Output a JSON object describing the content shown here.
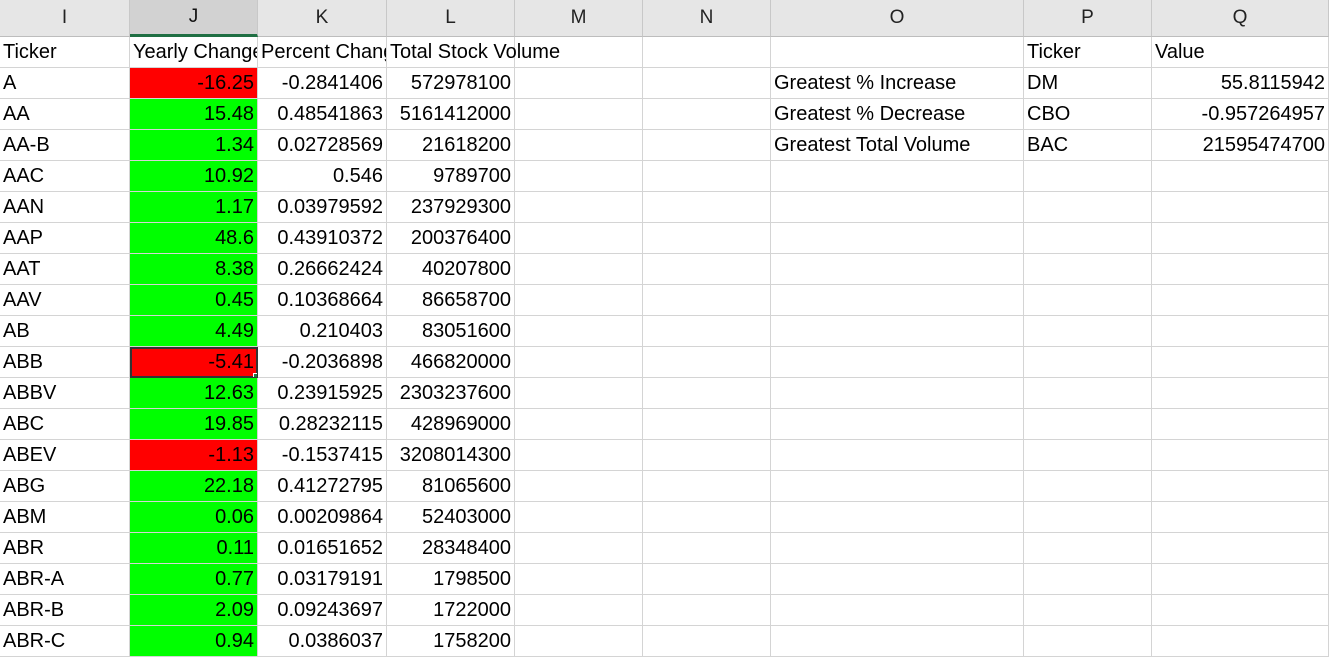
{
  "columns": [
    "I",
    "J",
    "K",
    "L",
    "M",
    "N",
    "O",
    "P",
    "Q"
  ],
  "headers": {
    "ticker": "Ticker",
    "yearly_change": "Yearly Change",
    "percent_change": "Percent Change",
    "total_volume": "Total Stock Volume",
    "summary_ticker": "Ticker",
    "summary_value": "Value"
  },
  "rows": [
    {
      "ticker": "A",
      "change": "-16.25",
      "pct": "-0.2841406",
      "vol": "572978100"
    },
    {
      "ticker": "AA",
      "change": "15.48",
      "pct": "0.48541863",
      "vol": "5161412000"
    },
    {
      "ticker": "AA-B",
      "change": "1.34",
      "pct": "0.02728569",
      "vol": "21618200"
    },
    {
      "ticker": "AAC",
      "change": "10.92",
      "pct": "0.546",
      "vol": "9789700"
    },
    {
      "ticker": "AAN",
      "change": "1.17",
      "pct": "0.03979592",
      "vol": "237929300"
    },
    {
      "ticker": "AAP",
      "change": "48.6",
      "pct": "0.43910372",
      "vol": "200376400"
    },
    {
      "ticker": "AAT",
      "change": "8.38",
      "pct": "0.26662424",
      "vol": "40207800"
    },
    {
      "ticker": "AAV",
      "change": "0.45",
      "pct": "0.10368664",
      "vol": "86658700"
    },
    {
      "ticker": "AB",
      "change": "4.49",
      "pct": "0.210403",
      "vol": "83051600"
    },
    {
      "ticker": "ABB",
      "change": "-5.41",
      "pct": "-0.2036898",
      "vol": "466820000"
    },
    {
      "ticker": "ABBV",
      "change": "12.63",
      "pct": "0.23915925",
      "vol": "2303237600"
    },
    {
      "ticker": "ABC",
      "change": "19.85",
      "pct": "0.28232115",
      "vol": "428969000"
    },
    {
      "ticker": "ABEV",
      "change": "-1.13",
      "pct": "-0.1537415",
      "vol": "3208014300"
    },
    {
      "ticker": "ABG",
      "change": "22.18",
      "pct": "0.41272795",
      "vol": "81065600"
    },
    {
      "ticker": "ABM",
      "change": "0.06",
      "pct": "0.00209864",
      "vol": "52403000"
    },
    {
      "ticker": "ABR",
      "change": "0.11",
      "pct": "0.01651652",
      "vol": "28348400"
    },
    {
      "ticker": "ABR-A",
      "change": "0.77",
      "pct": "0.03179191",
      "vol": "1798500"
    },
    {
      "ticker": "ABR-B",
      "change": "2.09",
      "pct": "0.09243697",
      "vol": "1722000"
    },
    {
      "ticker": "ABR-C",
      "change": "0.94",
      "pct": "0.0386037",
      "vol": "1758200"
    }
  ],
  "summary": [
    {
      "label": "Greatest % Increase",
      "ticker": "DM",
      "value": "55.8115942"
    },
    {
      "label": "Greatest % Decrease",
      "ticker": "CBO",
      "value": "-0.957264957"
    },
    {
      "label": "Greatest Total Volume",
      "ticker": "BAC",
      "value": "21595474700"
    }
  ],
  "selected_cell": {
    "column": "J",
    "row_index": 9
  },
  "colors": {
    "positive": "#00ff00",
    "negative": "#ff0000",
    "selection": "#217346"
  }
}
